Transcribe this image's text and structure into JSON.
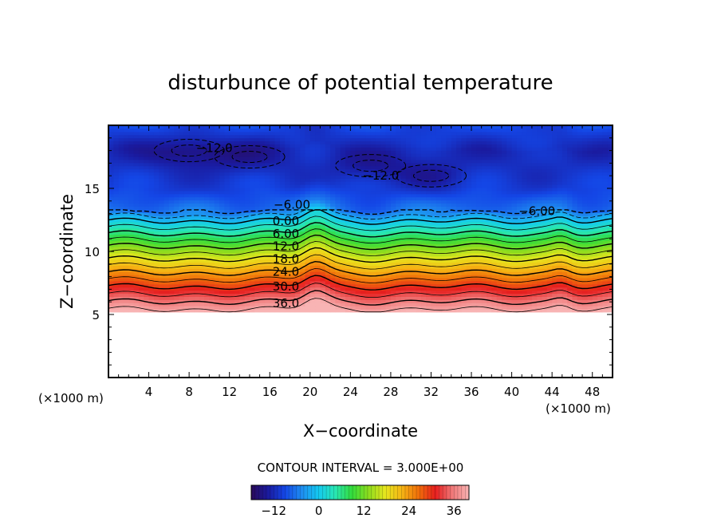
{
  "chart_data": {
    "type": "heatmap",
    "title": "disturbunce of potential temperature",
    "xlabel": "X−coordinate",
    "ylabel": "Z−coordinate",
    "x_unit": "(×1000 m)",
    "y_unit": "(×1000 m)",
    "xlim": [
      0,
      50
    ],
    "ylim": [
      0,
      20
    ],
    "x_ticks": [
      4,
      8,
      12,
      16,
      20,
      24,
      28,
      32,
      36,
      40,
      44,
      48
    ],
    "x_tick_labels": [
      "4",
      "8",
      "12",
      "16",
      "20",
      "24",
      "28",
      "32",
      "36",
      "40",
      "44",
      "48"
    ],
    "y_ticks": [
      5,
      10,
      15
    ],
    "y_tick_labels": [
      "5",
      "10",
      "15"
    ],
    "contour_interval_text": "CONTOUR INTERVAL = 3.000E+00",
    "contour_interval": 3,
    "contour_labels": [
      {
        "text": "−12.0",
        "x": 10.5,
        "z": 18.2
      },
      {
        "text": "−12.0",
        "x": 27.0,
        "z": 16.0
      },
      {
        "text": "−6.00",
        "x": 18.2,
        "z": 13.7
      },
      {
        "text": "−6.00",
        "x": 42.5,
        "z": 13.2
      },
      {
        "text": "0.00",
        "x": 17.6,
        "z": 12.4
      },
      {
        "text": "6.00",
        "x": 17.6,
        "z": 11.4
      },
      {
        "text": "12.0",
        "x": 17.6,
        "z": 10.4
      },
      {
        "text": "18.0",
        "x": 17.6,
        "z": 9.4
      },
      {
        "text": "24.0",
        "x": 17.6,
        "z": 8.4
      },
      {
        "text": "30.0",
        "x": 17.6,
        "z": 7.2
      },
      {
        "text": "36.0",
        "x": 17.6,
        "z": 5.9
      }
    ],
    "field": {
      "data_z_min": 5.2,
      "bands": [
        {
          "z": 5.2,
          "value": 40
        },
        {
          "z": 7.2,
          "value": 30
        },
        {
          "z": 9.4,
          "value": 18
        },
        {
          "z": 11.4,
          "value": 6
        },
        {
          "z": 12.4,
          "value": 0
        },
        {
          "z": 13.2,
          "value": -6
        },
        {
          "z": 15.0,
          "value": -10
        },
        {
          "z": 18.0,
          "value": -12
        },
        {
          "z": 20.0,
          "value": -9
        }
      ],
      "cold_pockets": [
        {
          "x": 8.0,
          "z": 18.0,
          "value": -16
        },
        {
          "x": 14.0,
          "z": 17.5,
          "value": -14
        },
        {
          "x": 26.0,
          "z": 16.8,
          "value": -14
        },
        {
          "x": 32.0,
          "z": 16.0,
          "value": -13
        }
      ]
    },
    "colorbar": {
      "min": -18,
      "max": 40,
      "ticks": [
        -12,
        0,
        12,
        24,
        36
      ],
      "tick_labels": [
        "−12",
        "0",
        "12",
        "24",
        "36"
      ],
      "colors": [
        "#2a0a5a",
        "#1a1a9e",
        "#1446e6",
        "#1e8cf0",
        "#14c8f0",
        "#28e6b4",
        "#32dc3c",
        "#8cdc1e",
        "#e6e61e",
        "#f5b414",
        "#f06e0a",
        "#e61e1e",
        "#f07878",
        "#f8b4b4"
      ]
    }
  }
}
